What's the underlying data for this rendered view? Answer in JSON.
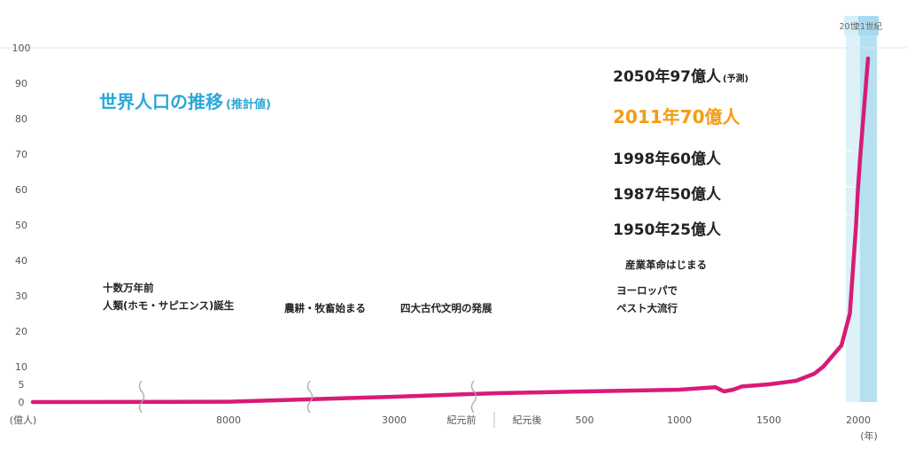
{
  "chart_data": {
    "type": "line",
    "title": "世界人口の推移",
    "title_suffix": "(推計値)",
    "ylabel": "(億人)",
    "xunit": "(年)",
    "yticks": [
      0,
      5,
      10,
      20,
      30,
      40,
      50,
      60,
      70,
      80,
      90,
      100
    ],
    "ylim": [
      0,
      100
    ],
    "grid": false,
    "line_color": "#d81b77",
    "x_tick_labels": [
      "8000",
      "3000",
      "紀元前",
      "紀元後",
      "500",
      "1000",
      "1500",
      "2000"
    ],
    "eras": [
      {
        "label": "20世紀",
        "color": "#d6eef7"
      },
      {
        "label": "21世紀",
        "color": "#a9daef"
      }
    ],
    "series": [
      {
        "x": [
          "十数万年前",
          "8000 BC",
          "3000 BC",
          "0",
          "500",
          "1000",
          "1200",
          "1250",
          "1300",
          "1350",
          "1500",
          "1650",
          "1750",
          "1800",
          "1850",
          "1900",
          "1950",
          "1987",
          "1998",
          "2011",
          "2050"
        ],
        "values": [
          0,
          0.1,
          1.5,
          2.5,
          3,
          3.5,
          4.2,
          3,
          3.5,
          4.4,
          5,
          6,
          8,
          10,
          13,
          16,
          25,
          50,
          60,
          70,
          97
        ]
      }
    ],
    "annotations": [
      {
        "text": "2050年97億人",
        "suffix": "(予測)",
        "color": "#222222"
      },
      {
        "text": "2011年70億人",
        "color": "#f39c12"
      },
      {
        "text": "1998年60億人",
        "color": "#222222"
      },
      {
        "text": "1987年50億人",
        "color": "#222222"
      },
      {
        "text": "1950年25億人",
        "color": "#222222"
      },
      {
        "text": "産業革命はじまる"
      },
      {
        "text": "ヨーロッパで",
        "text2": "ペスト大流行"
      },
      {
        "text": "十数万年前",
        "text2": "人類(ホモ・サピエンス)誕生"
      },
      {
        "text": "農耕・牧畜始まる"
      },
      {
        "text": "四大古代文明の発展"
      }
    ]
  }
}
